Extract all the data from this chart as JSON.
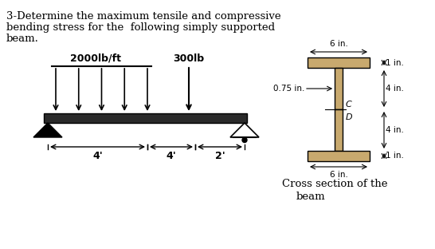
{
  "title_line1": "3-Determine the maximum tensile and compressive",
  "title_line2": "bending stress for the  following simply supported",
  "title_line3": "beam.",
  "load_label": "2000lb/ft",
  "point_load_label": "300lb",
  "dim1": "4'",
  "dim2": "4'",
  "dim3": "2'",
  "cross_section_label": "Cross section of the",
  "cross_section_label2": "beam",
  "cs_dim1": "6 in.",
  "cs_dim2": "1 in.",
  "cs_dim3": "0.75 in.",
  "cs_dim4": "4 in.",
  "cs_dim5": "4 in.",
  "cs_dim6": "6 in.",
  "cs_dim7": "1 in.",
  "cs_C_label": "C",
  "cs_D_label": "D",
  "bg_color": "#ffffff",
  "flange_color": "#c8a96e",
  "text_color": "#000000",
  "beam_fill": "#2a2a2a"
}
